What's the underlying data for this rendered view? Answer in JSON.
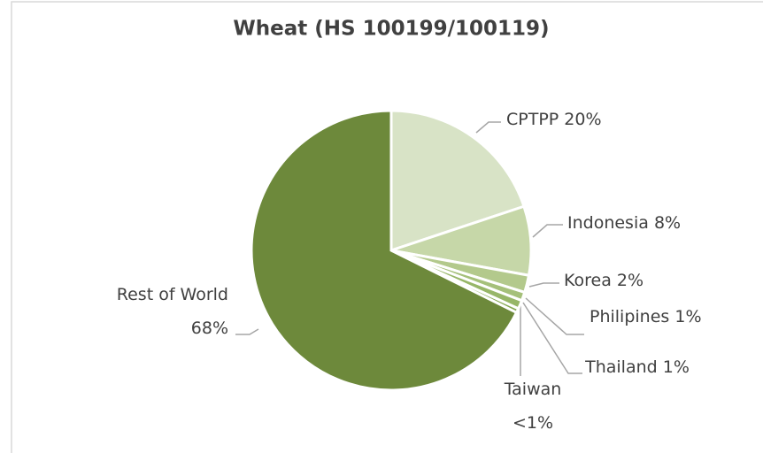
{
  "chart_data": {
    "type": "pie",
    "title": "Wheat (HS 100199/100119)",
    "categories": [
      "CPTPP",
      "Indonesia",
      "Korea",
      "Philipines",
      "Thailand",
      "Taiwan",
      "Rest of World"
    ],
    "values": [
      20,
      8,
      2,
      1,
      1,
      0.5,
      68
    ],
    "value_labels": [
      "20%",
      "8%",
      "2%",
      "1%",
      "1%",
      "<1%",
      "68%"
    ],
    "colors": [
      "#d8e3c6",
      "#c6d7a8",
      "#b3c98c",
      "#a5c07a",
      "#97b668",
      "#86a955",
      "#6d893b"
    ]
  }
}
